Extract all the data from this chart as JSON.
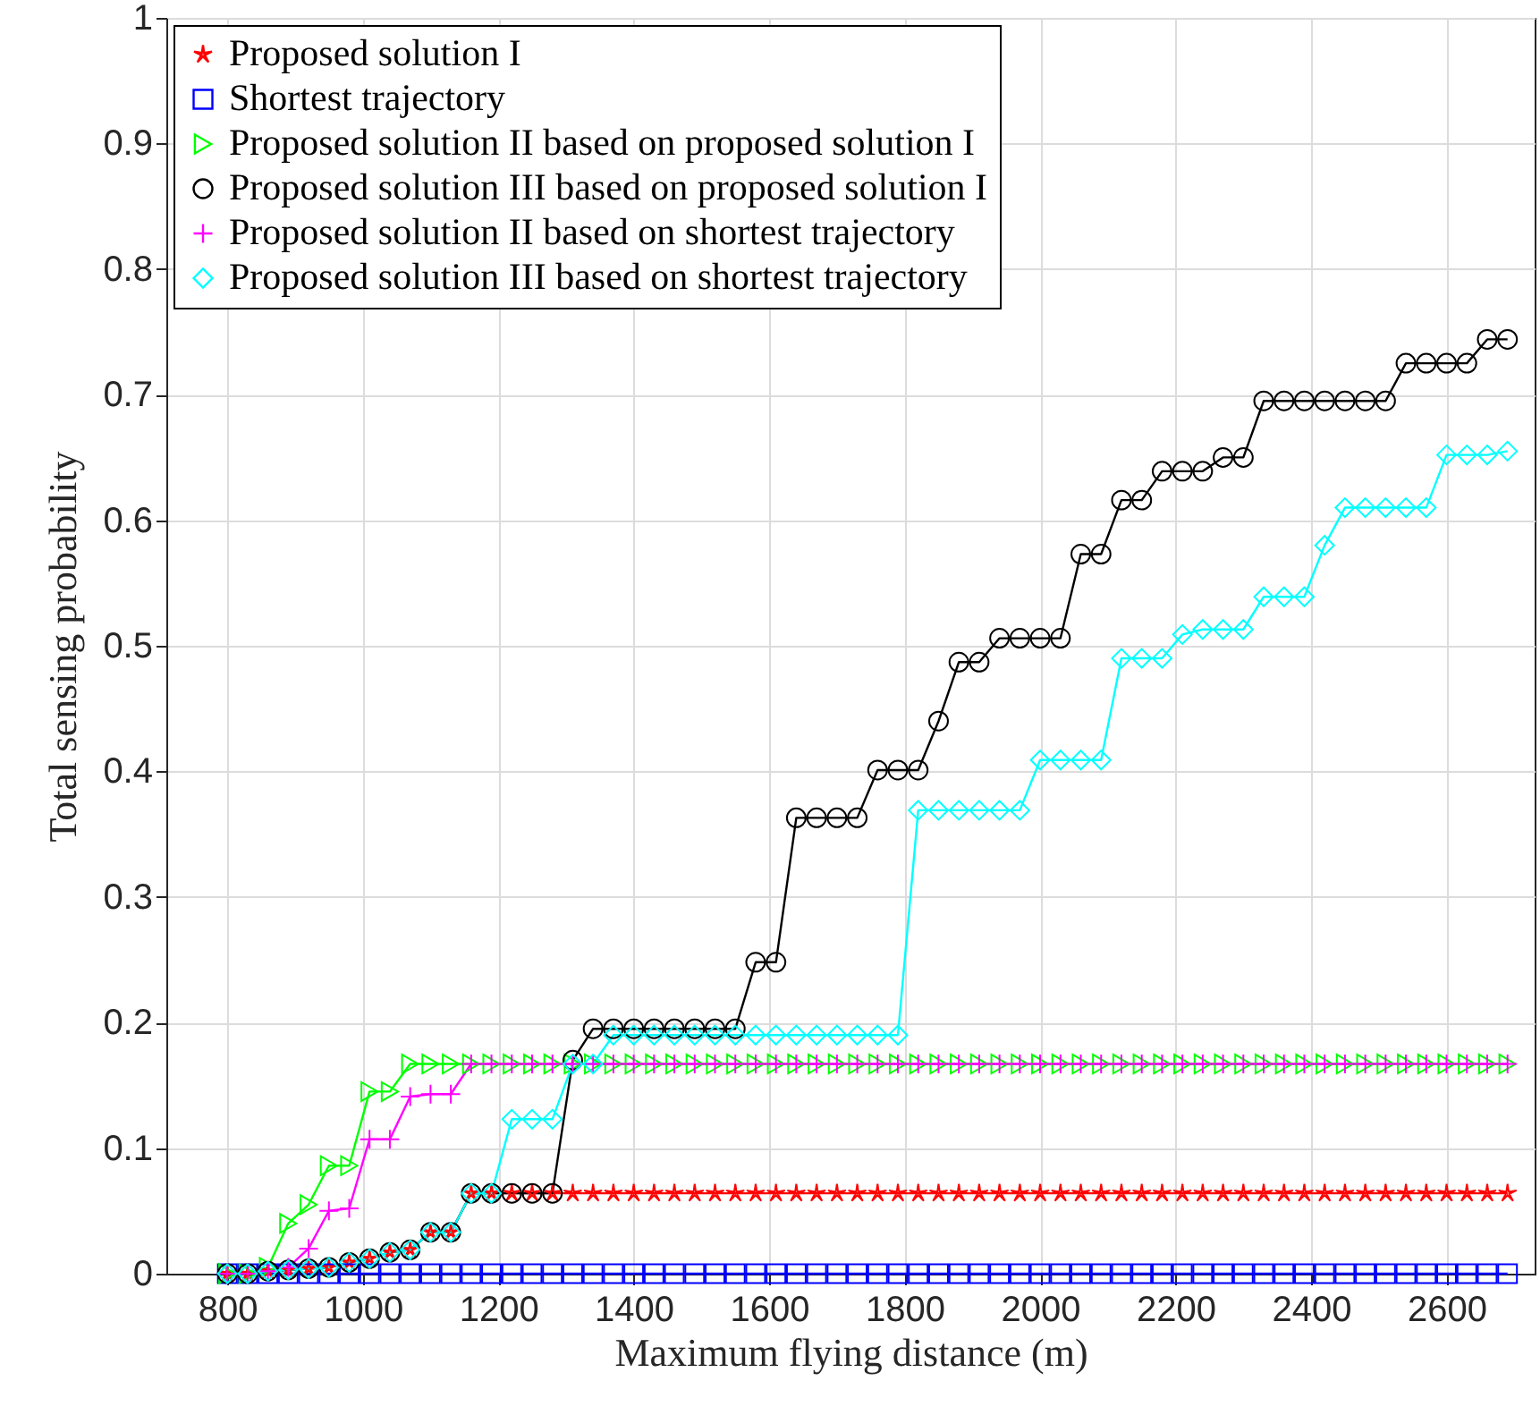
{
  "chart_data": {
    "type": "line",
    "xlabel": "Maximum flying distance (m)",
    "ylabel": "Total sensing probability",
    "x": [
      800,
      830,
      860,
      890,
      920,
      950,
      980,
      1010,
      1040,
      1070,
      1100,
      1130,
      1160,
      1190,
      1220,
      1250,
      1280,
      1310,
      1340,
      1370,
      1400,
      1430,
      1460,
      1490,
      1520,
      1550,
      1580,
      1610,
      1640,
      1670,
      1700,
      1730,
      1760,
      1790,
      1820,
      1850,
      1880,
      1910,
      1940,
      1970,
      2000,
      2030,
      2060,
      2090,
      2120,
      2150,
      2180,
      2210,
      2240,
      2270,
      2300,
      2330,
      2360,
      2390,
      2420,
      2450,
      2480,
      2510,
      2540,
      2570,
      2600,
      2630,
      2660,
      2690
    ],
    "series": [
      {
        "name": "Proposed solution I",
        "color": "#ff0000",
        "marker": "star",
        "values": [
          0,
          0,
          0.002,
          0.003,
          0.004,
          0.005,
          0.009,
          0.012,
          0.017,
          0.019,
          0.033,
          0.033,
          0.064,
          0.064,
          0.064,
          0.064,
          0.064,
          0.064,
          0.064,
          0.064,
          0.064,
          0.064,
          0.064,
          0.064,
          0.064,
          0.064,
          0.064,
          0.064,
          0.064,
          0.064,
          0.064,
          0.064,
          0.064,
          0.064,
          0.064,
          0.064,
          0.064,
          0.064,
          0.064,
          0.064,
          0.064,
          0.064,
          0.064,
          0.064,
          0.064,
          0.064,
          0.064,
          0.064,
          0.064,
          0.064,
          0.064,
          0.064,
          0.064,
          0.064,
          0.064,
          0.064,
          0.064,
          0.064,
          0.064,
          0.064,
          0.064,
          0.064,
          0.064,
          0.064
        ]
      },
      {
        "name": "Shortest trajectory",
        "color": "#0000ff",
        "marker": "square",
        "values": [
          0,
          0,
          0,
          0,
          0,
          0,
          0,
          0,
          0,
          0,
          0,
          0,
          0,
          0,
          0,
          0,
          0,
          0,
          0,
          0,
          0,
          0,
          0,
          0,
          0,
          0,
          0,
          0,
          0,
          0,
          0,
          0,
          0,
          0,
          0,
          0,
          0,
          0,
          0,
          0,
          0,
          0,
          0,
          0,
          0,
          0,
          0,
          0,
          0,
          0,
          0,
          0,
          0,
          0,
          0,
          0,
          0,
          0,
          0,
          0,
          0,
          0,
          0,
          0
        ]
      },
      {
        "name": "Proposed solution II based on proposed solution I",
        "color": "#00ff00",
        "marker": "triangle",
        "values": [
          0,
          0,
          0.005,
          0.04,
          0.055,
          0.086,
          0.086,
          0.145,
          0.145,
          0.167,
          0.167,
          0.167,
          0.167,
          0.167,
          0.167,
          0.167,
          0.167,
          0.167,
          0.167,
          0.167,
          0.167,
          0.167,
          0.167,
          0.167,
          0.167,
          0.167,
          0.167,
          0.167,
          0.167,
          0.167,
          0.167,
          0.167,
          0.167,
          0.167,
          0.167,
          0.167,
          0.167,
          0.167,
          0.167,
          0.167,
          0.167,
          0.167,
          0.167,
          0.167,
          0.167,
          0.167,
          0.167,
          0.167,
          0.167,
          0.167,
          0.167,
          0.167,
          0.167,
          0.167,
          0.167,
          0.167,
          0.167,
          0.167,
          0.167,
          0.167,
          0.167,
          0.167,
          0.167,
          0.167
        ]
      },
      {
        "name": "Proposed solution III based on proposed solution I",
        "color": "#000000",
        "marker": "circle",
        "values": [
          0,
          0,
          0.002,
          0.003,
          0.004,
          0.005,
          0.009,
          0.012,
          0.017,
          0.019,
          0.033,
          0.033,
          0.064,
          0.064,
          0.064,
          0.064,
          0.064,
          0.17,
          0.195,
          0.195,
          0.195,
          0.195,
          0.195,
          0.195,
          0.195,
          0.195,
          0.248,
          0.248,
          0.363,
          0.363,
          0.363,
          0.363,
          0.401,
          0.401,
          0.401,
          0.44,
          0.487,
          0.487,
          0.506,
          0.506,
          0.506,
          0.506,
          0.573,
          0.573,
          0.616,
          0.616,
          0.639,
          0.639,
          0.639,
          0.65,
          0.65,
          0.695,
          0.695,
          0.695,
          0.695,
          0.695,
          0.695,
          0.695,
          0.725,
          0.725,
          0.725,
          0.725,
          0.744,
          0.744
        ]
      },
      {
        "name": "Proposed solution II based on shortest trajectory",
        "color": "#ff00ff",
        "marker": "cross",
        "values": [
          0,
          0,
          0.002,
          0.005,
          0.02,
          0.05,
          0.052,
          0.107,
          0.107,
          0.141,
          0.143,
          0.143,
          0.167,
          0.167,
          0.167,
          0.167,
          0.167,
          0.167,
          0.167,
          0.167,
          0.167,
          0.167,
          0.167,
          0.167,
          0.167,
          0.167,
          0.167,
          0.167,
          0.167,
          0.167,
          0.167,
          0.167,
          0.167,
          0.167,
          0.167,
          0.167,
          0.167,
          0.167,
          0.167,
          0.167,
          0.167,
          0.167,
          0.167,
          0.167,
          0.167,
          0.167,
          0.167,
          0.167,
          0.167,
          0.167,
          0.167,
          0.167,
          0.167,
          0.167,
          0.167,
          0.167,
          0.167,
          0.167,
          0.167,
          0.167,
          0.167,
          0.167,
          0.167,
          0.167
        ]
      },
      {
        "name": "Proposed solution III based on shortest trajectory",
        "color": "#00ffff",
        "marker": "diamond",
        "values": [
          0,
          0,
          0.002,
          0.003,
          0.004,
          0.005,
          0.009,
          0.012,
          0.017,
          0.019,
          0.033,
          0.033,
          0.064,
          0.064,
          0.123,
          0.123,
          0.123,
          0.167,
          0.167,
          0.19,
          0.19,
          0.19,
          0.19,
          0.19,
          0.19,
          0.19,
          0.19,
          0.19,
          0.19,
          0.19,
          0.19,
          0.19,
          0.19,
          0.19,
          0.369,
          0.369,
          0.369,
          0.369,
          0.369,
          0.369,
          0.409,
          0.409,
          0.409,
          0.409,
          0.49,
          0.49,
          0.49,
          0.509,
          0.513,
          0.513,
          0.513,
          0.539,
          0.539,
          0.539,
          0.58,
          0.61,
          0.61,
          0.61,
          0.61,
          0.61,
          0.652,
          0.652,
          0.652,
          0.655
        ]
      }
    ],
    "xlim": [
      710,
      2730
    ],
    "xticks": [
      800,
      1000,
      1200,
      1400,
      1600,
      1800,
      2000,
      2200,
      2400,
      2600
    ],
    "ylim": [
      0,
      1
    ],
    "yticks": [
      0,
      0.1,
      0.2,
      0.3,
      0.4,
      0.5,
      0.6,
      0.7,
      0.8,
      0.9,
      1
    ],
    "grid": true,
    "legend": "top left",
    "line_style": "solid"
  }
}
